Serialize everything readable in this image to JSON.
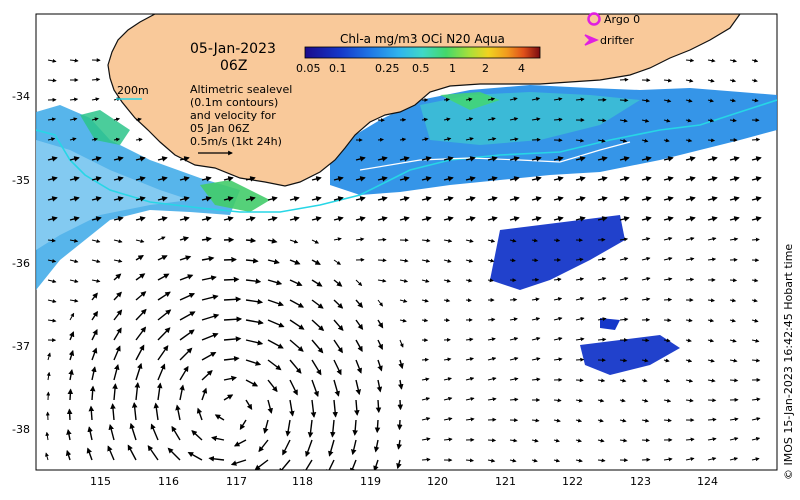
{
  "header": {
    "date": "05-Jan-2023",
    "time": "06Z"
  },
  "colorbar": {
    "title": "Chl-a mg/m3 OCi N20 Aqua",
    "ticks": [
      "0.05",
      "0.1",
      "0.25",
      "0.5",
      "1",
      "2",
      "4"
    ],
    "colors": [
      "#1a0a8c",
      "#1537c9",
      "#1f78e6",
      "#2fb4ee",
      "#3fd8c8",
      "#44d86a",
      "#a8e03a",
      "#f1d320",
      "#f19a1e",
      "#e0501a",
      "#b3131a",
      "#7a0a10"
    ]
  },
  "legend": {
    "argo_label": "Argo 0",
    "drifter_label": "drifter",
    "argo_color": "#e020e0",
    "drifter_color": "#e020e0",
    "contour_label": "200m",
    "contour_color": "#27d6e6",
    "description": [
      "Altimetric sealevel",
      "(0.1m contours)",
      "and velocity for",
      "05 Jan 06Z",
      "0.5m/s (1kt 24h)"
    ]
  },
  "axes": {
    "lon_ticks": [
      "115",
      "116",
      "117",
      "118",
      "119",
      "120",
      "121",
      "122",
      "123",
      "124"
    ],
    "lat_ticks": [
      "-34",
      "-35",
      "-36",
      "-37",
      "-38"
    ]
  },
  "credit": "© IMOS 15-Jan-2023 16:42:45 Hobart time",
  "colors": {
    "land": "#f9c99a",
    "coast": "#111111",
    "sealevel": "#ffffff"
  }
}
